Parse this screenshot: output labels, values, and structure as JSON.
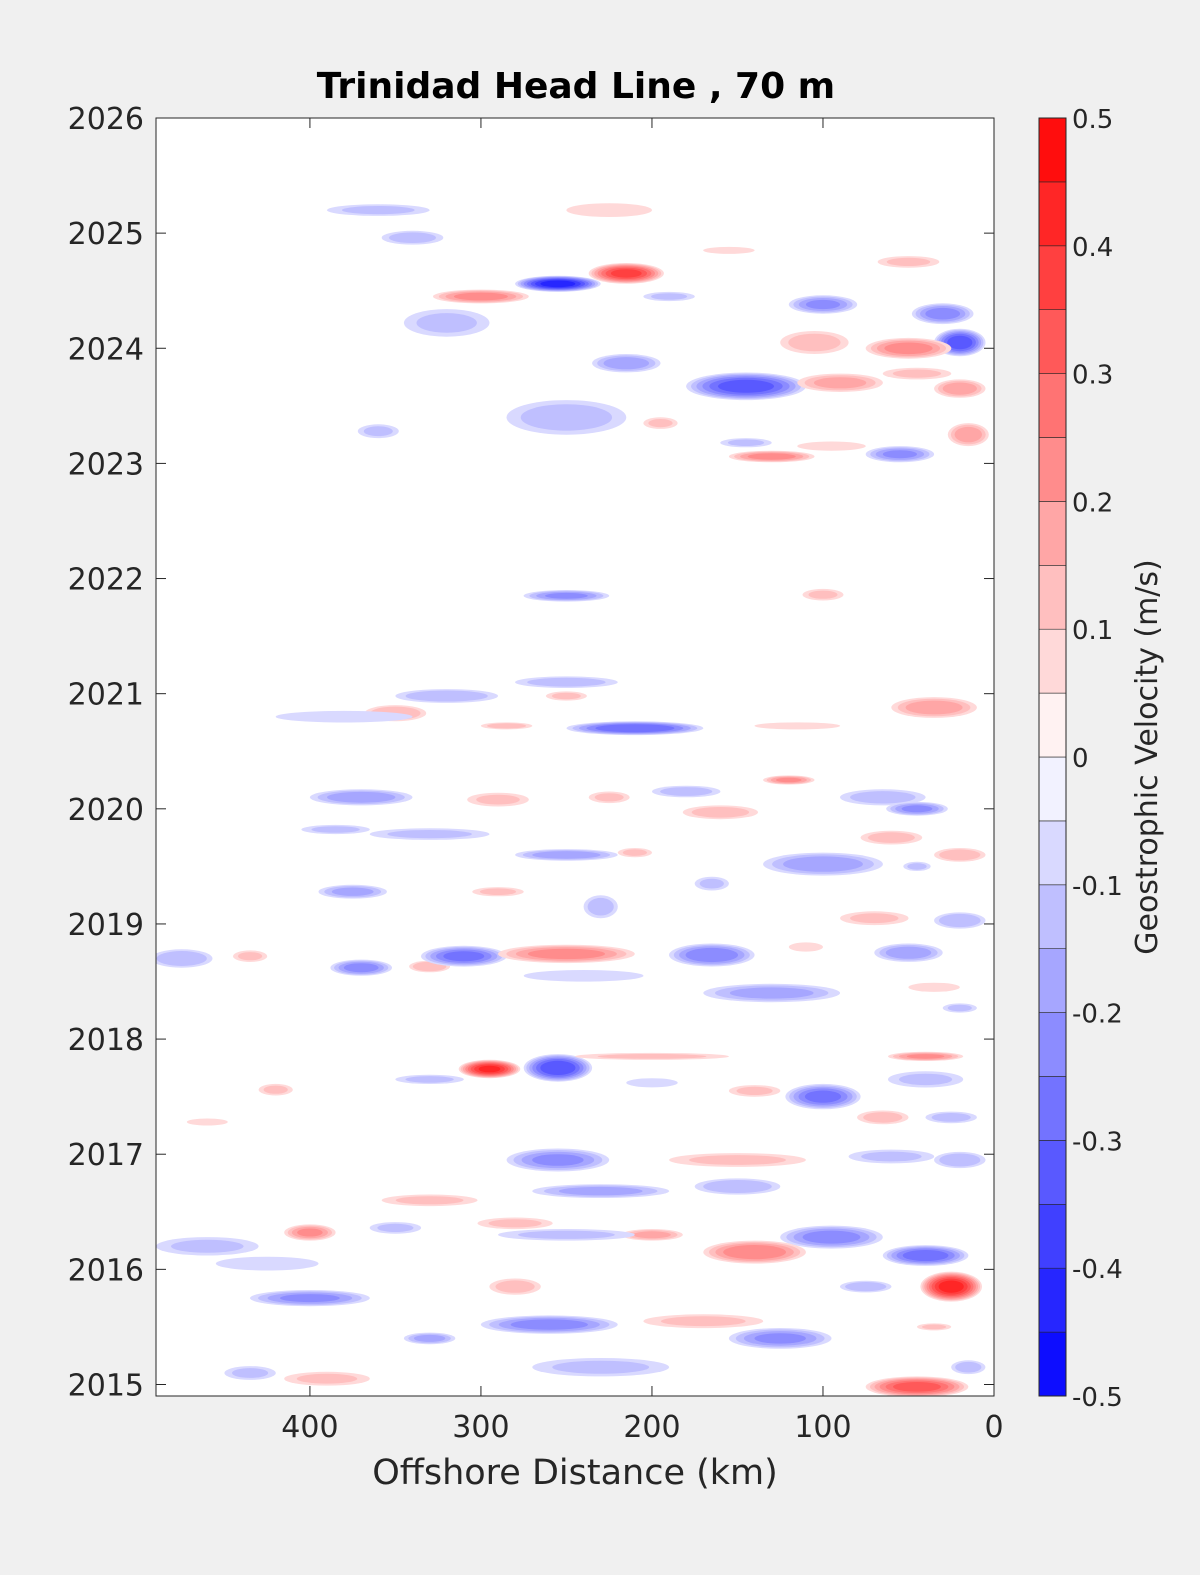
{
  "chart_data": {
    "type": "heatmap",
    "title": "Trinidad Head Line , 70 m",
    "xlabel": "Offshore Distance (km)",
    "ylabel": "",
    "xlim": [
      490,
      0
    ],
    "ylim": [
      2014.9,
      2026
    ],
    "x_ticks": [
      400,
      300,
      200,
      100,
      0
    ],
    "y_ticks": [
      2015,
      2016,
      2017,
      2018,
      2019,
      2020,
      2021,
      2022,
      2023,
      2024,
      2025,
      2026
    ],
    "grid": false,
    "colorbar": {
      "label": "Geostrophic Velocity (m/s)",
      "range": [
        -0.5,
        0.5
      ],
      "levels": [
        -0.5,
        -0.45,
        -0.4,
        -0.35,
        -0.3,
        -0.25,
        -0.2,
        -0.15,
        -0.1,
        -0.05,
        0,
        0.05,
        0.1,
        0.15,
        0.2,
        0.25,
        0.3,
        0.35,
        0.4,
        0.45,
        0.5
      ],
      "ticks": [
        0.5,
        0.4,
        0.3,
        0.2,
        0.1,
        0,
        -0.1,
        -0.2,
        -0.3,
        -0.4,
        -0.5
      ],
      "tick_labels": [
        "0.5",
        "0.4",
        "0.3",
        "0.2",
        "0.1",
        "0",
        "-0.1",
        "-0.2",
        "-0.3",
        "-0.4",
        "-0.5"
      ]
    },
    "features": [
      {
        "x": 360,
        "y": 2025.2,
        "v": -0.1,
        "rx": 30,
        "ry": 0.05
      },
      {
        "x": 225,
        "y": 2025.2,
        "v": 0.08,
        "rx": 25,
        "ry": 0.06
      },
      {
        "x": 340,
        "y": 2024.96,
        "v": -0.12,
        "rx": 18,
        "ry": 0.06
      },
      {
        "x": 255,
        "y": 2024.56,
        "v": -0.42,
        "rx": 25,
        "ry": 0.07
      },
      {
        "x": 215,
        "y": 2024.65,
        "v": 0.36,
        "rx": 22,
        "ry": 0.09
      },
      {
        "x": 300,
        "y": 2024.45,
        "v": 0.22,
        "rx": 28,
        "ry": 0.06
      },
      {
        "x": 190,
        "y": 2024.45,
        "v": -0.1,
        "rx": 15,
        "ry": 0.04
      },
      {
        "x": 100,
        "y": 2024.38,
        "v": -0.2,
        "rx": 20,
        "ry": 0.08
      },
      {
        "x": 30,
        "y": 2024.3,
        "v": -0.22,
        "rx": 18,
        "ry": 0.09
      },
      {
        "x": 20,
        "y": 2024.05,
        "v": -0.33,
        "rx": 15,
        "ry": 0.12
      },
      {
        "x": 50,
        "y": 2024.0,
        "v": 0.22,
        "rx": 25,
        "ry": 0.09
      },
      {
        "x": 105,
        "y": 2024.05,
        "v": 0.12,
        "rx": 20,
        "ry": 0.1
      },
      {
        "x": 155,
        "y": 2024.85,
        "v": 0.08,
        "rx": 15,
        "ry": 0.03
      },
      {
        "x": 50,
        "y": 2024.75,
        "v": 0.1,
        "rx": 18,
        "ry": 0.05
      },
      {
        "x": 215,
        "y": 2023.87,
        "v": -0.18,
        "rx": 20,
        "ry": 0.08
      },
      {
        "x": 145,
        "y": 2023.67,
        "v": -0.32,
        "rx": 35,
        "ry": 0.12
      },
      {
        "x": 90,
        "y": 2023.7,
        "v": 0.16,
        "rx": 25,
        "ry": 0.08
      },
      {
        "x": 20,
        "y": 2023.65,
        "v": 0.18,
        "rx": 15,
        "ry": 0.08
      },
      {
        "x": 45,
        "y": 2023.78,
        "v": 0.1,
        "rx": 20,
        "ry": 0.05
      },
      {
        "x": 320,
        "y": 2024.22,
        "v": -0.1,
        "rx": 25,
        "ry": 0.12
      },
      {
        "x": 250,
        "y": 2023.4,
        "v": -0.12,
        "rx": 35,
        "ry": 0.15
      },
      {
        "x": 360,
        "y": 2023.28,
        "v": -0.1,
        "rx": 12,
        "ry": 0.06
      },
      {
        "x": 195,
        "y": 2023.35,
        "v": 0.1,
        "rx": 10,
        "ry": 0.05
      },
      {
        "x": 145,
        "y": 2023.18,
        "v": -0.1,
        "rx": 15,
        "ry": 0.04
      },
      {
        "x": 130,
        "y": 2023.06,
        "v": 0.22,
        "rx": 25,
        "ry": 0.05
      },
      {
        "x": 55,
        "y": 2023.08,
        "v": -0.2,
        "rx": 20,
        "ry": 0.07
      },
      {
        "x": 15,
        "y": 2023.25,
        "v": 0.18,
        "rx": 12,
        "ry": 0.1
      },
      {
        "x": 95,
        "y": 2023.15,
        "v": 0.08,
        "rx": 20,
        "ry": 0.04
      },
      {
        "x": 250,
        "y": 2021.85,
        "v": -0.2,
        "rx": 25,
        "ry": 0.05
      },
      {
        "x": 100,
        "y": 2021.86,
        "v": 0.1,
        "rx": 12,
        "ry": 0.05
      },
      {
        "x": 250,
        "y": 2021.1,
        "v": -0.12,
        "rx": 30,
        "ry": 0.05
      },
      {
        "x": 320,
        "y": 2020.98,
        "v": -0.14,
        "rx": 30,
        "ry": 0.06
      },
      {
        "x": 250,
        "y": 2020.98,
        "v": 0.1,
        "rx": 12,
        "ry": 0.04
      },
      {
        "x": 210,
        "y": 2020.7,
        "v": -0.3,
        "rx": 40,
        "ry": 0.06
      },
      {
        "x": 285,
        "y": 2020.72,
        "v": 0.12,
        "rx": 15,
        "ry": 0.03
      },
      {
        "x": 350,
        "y": 2020.83,
        "v": 0.15,
        "rx": 18,
        "ry": 0.07
      },
      {
        "x": 35,
        "y": 2020.88,
        "v": 0.18,
        "rx": 25,
        "ry": 0.09
      },
      {
        "x": 380,
        "y": 2020.8,
        "v": -0.08,
        "rx": 40,
        "ry": 0.05
      },
      {
        "x": 115,
        "y": 2020.72,
        "v": 0.08,
        "rx": 25,
        "ry": 0.03
      },
      {
        "x": 120,
        "y": 2020.25,
        "v": 0.2,
        "rx": 15,
        "ry": 0.04
      },
      {
        "x": 370,
        "y": 2020.1,
        "v": -0.18,
        "rx": 30,
        "ry": 0.07
      },
      {
        "x": 290,
        "y": 2020.08,
        "v": 0.1,
        "rx": 18,
        "ry": 0.06
      },
      {
        "x": 225,
        "y": 2020.1,
        "v": 0.1,
        "rx": 12,
        "ry": 0.05
      },
      {
        "x": 180,
        "y": 2020.15,
        "v": -0.12,
        "rx": 20,
        "ry": 0.05
      },
      {
        "x": 160,
        "y": 2019.97,
        "v": 0.12,
        "rx": 22,
        "ry": 0.06
      },
      {
        "x": 65,
        "y": 2020.1,
        "v": -0.12,
        "rx": 25,
        "ry": 0.07
      },
      {
        "x": 45,
        "y": 2020.0,
        "v": -0.2,
        "rx": 18,
        "ry": 0.06
      },
      {
        "x": 60,
        "y": 2019.75,
        "v": 0.12,
        "rx": 18,
        "ry": 0.06
      },
      {
        "x": 210,
        "y": 2019.62,
        "v": 0.1,
        "rx": 10,
        "ry": 0.04
      },
      {
        "x": 250,
        "y": 2019.6,
        "v": -0.18,
        "rx": 30,
        "ry": 0.05
      },
      {
        "x": 330,
        "y": 2019.78,
        "v": -0.1,
        "rx": 35,
        "ry": 0.05
      },
      {
        "x": 385,
        "y": 2019.82,
        "v": -0.1,
        "rx": 20,
        "ry": 0.04
      },
      {
        "x": 100,
        "y": 2019.52,
        "v": -0.18,
        "rx": 35,
        "ry": 0.1
      },
      {
        "x": 20,
        "y": 2019.6,
        "v": 0.14,
        "rx": 15,
        "ry": 0.06
      },
      {
        "x": 45,
        "y": 2019.5,
        "v": -0.1,
        "rx": 8,
        "ry": 0.04
      },
      {
        "x": 375,
        "y": 2019.28,
        "v": -0.16,
        "rx": 20,
        "ry": 0.06
      },
      {
        "x": 290,
        "y": 2019.28,
        "v": 0.1,
        "rx": 15,
        "ry": 0.04
      },
      {
        "x": 165,
        "y": 2019.35,
        "v": -0.1,
        "rx": 10,
        "ry": 0.06
      },
      {
        "x": 230,
        "y": 2019.15,
        "v": -0.12,
        "rx": 10,
        "ry": 0.1
      },
      {
        "x": 70,
        "y": 2019.05,
        "v": 0.1,
        "rx": 20,
        "ry": 0.06
      },
      {
        "x": 20,
        "y": 2019.03,
        "v": -0.15,
        "rx": 15,
        "ry": 0.07
      },
      {
        "x": 475,
        "y": 2018.7,
        "v": -0.15,
        "rx": 18,
        "ry": 0.08
      },
      {
        "x": 435,
        "y": 2018.72,
        "v": 0.1,
        "rx": 10,
        "ry": 0.05
      },
      {
        "x": 370,
        "y": 2018.62,
        "v": -0.22,
        "rx": 18,
        "ry": 0.07
      },
      {
        "x": 330,
        "y": 2018.63,
        "v": 0.15,
        "rx": 12,
        "ry": 0.05
      },
      {
        "x": 310,
        "y": 2018.72,
        "v": -0.26,
        "rx": 25,
        "ry": 0.09
      },
      {
        "x": 250,
        "y": 2018.74,
        "v": 0.22,
        "rx": 40,
        "ry": 0.08
      },
      {
        "x": 165,
        "y": 2018.73,
        "v": -0.24,
        "rx": 25,
        "ry": 0.1
      },
      {
        "x": 110,
        "y": 2018.8,
        "v": 0.08,
        "rx": 10,
        "ry": 0.04
      },
      {
        "x": 50,
        "y": 2018.75,
        "v": -0.18,
        "rx": 20,
        "ry": 0.08
      },
      {
        "x": 130,
        "y": 2018.4,
        "v": -0.16,
        "rx": 40,
        "ry": 0.08
      },
      {
        "x": 240,
        "y": 2018.55,
        "v": -0.08,
        "rx": 35,
        "ry": 0.05
      },
      {
        "x": 35,
        "y": 2018.45,
        "v": 0.08,
        "rx": 15,
        "ry": 0.04
      },
      {
        "x": 20,
        "y": 2018.27,
        "v": -0.1,
        "rx": 10,
        "ry": 0.04
      },
      {
        "x": 295,
        "y": 2017.74,
        "v": 0.4,
        "rx": 18,
        "ry": 0.08
      },
      {
        "x": 255,
        "y": 2017.75,
        "v": -0.34,
        "rx": 20,
        "ry": 0.12
      },
      {
        "x": 330,
        "y": 2017.65,
        "v": -0.1,
        "rx": 20,
        "ry": 0.04
      },
      {
        "x": 200,
        "y": 2017.85,
        "v": 0.1,
        "rx": 45,
        "ry": 0.03
      },
      {
        "x": 40,
        "y": 2017.85,
        "v": 0.2,
        "rx": 22,
        "ry": 0.04
      },
      {
        "x": 40,
        "y": 2017.65,
        "v": -0.1,
        "rx": 22,
        "ry": 0.07
      },
      {
        "x": 100,
        "y": 2017.5,
        "v": -0.26,
        "rx": 22,
        "ry": 0.11
      },
      {
        "x": 140,
        "y": 2017.55,
        "v": 0.1,
        "rx": 15,
        "ry": 0.05
      },
      {
        "x": 200,
        "y": 2017.62,
        "v": -0.08,
        "rx": 15,
        "ry": 0.04
      },
      {
        "x": 420,
        "y": 2017.56,
        "v": 0.1,
        "rx": 10,
        "ry": 0.05
      },
      {
        "x": 460,
        "y": 2017.28,
        "v": 0.08,
        "rx": 12,
        "ry": 0.03
      },
      {
        "x": 65,
        "y": 2017.32,
        "v": 0.12,
        "rx": 15,
        "ry": 0.06
      },
      {
        "x": 25,
        "y": 2017.32,
        "v": -0.12,
        "rx": 15,
        "ry": 0.05
      },
      {
        "x": 255,
        "y": 2016.95,
        "v": -0.2,
        "rx": 30,
        "ry": 0.1
      },
      {
        "x": 150,
        "y": 2016.95,
        "v": 0.1,
        "rx": 40,
        "ry": 0.06
      },
      {
        "x": 60,
        "y": 2016.98,
        "v": -0.1,
        "rx": 25,
        "ry": 0.06
      },
      {
        "x": 20,
        "y": 2016.95,
        "v": -0.14,
        "rx": 15,
        "ry": 0.07
      },
      {
        "x": 230,
        "y": 2016.68,
        "v": -0.16,
        "rx": 40,
        "ry": 0.06
      },
      {
        "x": 150,
        "y": 2016.72,
        "v": -0.14,
        "rx": 25,
        "ry": 0.07
      },
      {
        "x": 330,
        "y": 2016.6,
        "v": 0.1,
        "rx": 28,
        "ry": 0.05
      },
      {
        "x": 280,
        "y": 2016.4,
        "v": 0.1,
        "rx": 22,
        "ry": 0.05
      },
      {
        "x": 400,
        "y": 2016.32,
        "v": 0.2,
        "rx": 15,
        "ry": 0.07
      },
      {
        "x": 350,
        "y": 2016.36,
        "v": -0.1,
        "rx": 15,
        "ry": 0.05
      },
      {
        "x": 200,
        "y": 2016.3,
        "v": 0.16,
        "rx": 18,
        "ry": 0.05
      },
      {
        "x": 95,
        "y": 2016.28,
        "v": -0.22,
        "rx": 30,
        "ry": 0.1
      },
      {
        "x": 40,
        "y": 2016.12,
        "v": -0.28,
        "rx": 25,
        "ry": 0.09
      },
      {
        "x": 140,
        "y": 2016.15,
        "v": 0.24,
        "rx": 30,
        "ry": 0.1
      },
      {
        "x": 250,
        "y": 2016.3,
        "v": -0.1,
        "rx": 40,
        "ry": 0.05
      },
      {
        "x": 460,
        "y": 2016.2,
        "v": -0.1,
        "rx": 30,
        "ry": 0.08
      },
      {
        "x": 425,
        "y": 2016.05,
        "v": -0.08,
        "rx": 30,
        "ry": 0.06
      },
      {
        "x": 25,
        "y": 2015.85,
        "v": 0.42,
        "rx": 18,
        "ry": 0.13
      },
      {
        "x": 75,
        "y": 2015.85,
        "v": -0.14,
        "rx": 15,
        "ry": 0.05
      },
      {
        "x": 400,
        "y": 2015.75,
        "v": -0.2,
        "rx": 35,
        "ry": 0.07
      },
      {
        "x": 280,
        "y": 2015.85,
        "v": 0.12,
        "rx": 15,
        "ry": 0.07
      },
      {
        "x": 260,
        "y": 2015.52,
        "v": -0.22,
        "rx": 40,
        "ry": 0.08
      },
      {
        "x": 170,
        "y": 2015.55,
        "v": 0.1,
        "rx": 35,
        "ry": 0.06
      },
      {
        "x": 125,
        "y": 2015.4,
        "v": -0.2,
        "rx": 30,
        "ry": 0.09
      },
      {
        "x": 330,
        "y": 2015.4,
        "v": -0.16,
        "rx": 15,
        "ry": 0.05
      },
      {
        "x": 390,
        "y": 2015.05,
        "v": 0.1,
        "rx": 25,
        "ry": 0.06
      },
      {
        "x": 435,
        "y": 2015.1,
        "v": -0.1,
        "rx": 15,
        "ry": 0.06
      },
      {
        "x": 45,
        "y": 2014.98,
        "v": 0.32,
        "rx": 30,
        "ry": 0.09
      },
      {
        "x": 15,
        "y": 2015.15,
        "v": -0.12,
        "rx": 10,
        "ry": 0.06
      },
      {
        "x": 230,
        "y": 2015.15,
        "v": -0.1,
        "rx": 40,
        "ry": 0.08
      },
      {
        "x": 35,
        "y": 2015.5,
        "v": 0.1,
        "rx": 10,
        "ry": 0.03
      }
    ]
  }
}
